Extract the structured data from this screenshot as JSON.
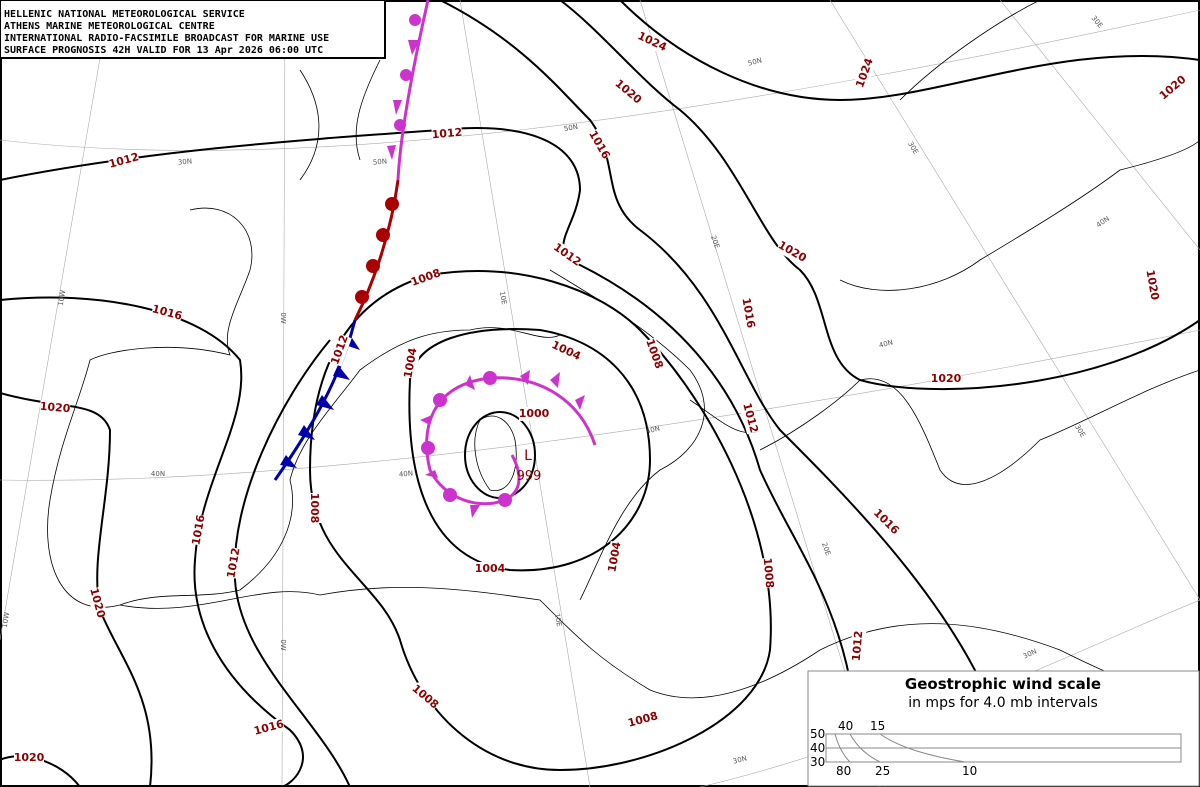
{
  "header": {
    "lines": [
      "HELLENIC NATIONAL METEOROLOGICAL SERVICE",
      "ATHENS MARINE METEOROLOGICAL CENTRE",
      "INTERNATIONAL RADIO-FACSIMILE BROADCAST FOR MARINE USE",
      "SURFACE PROGNOSIS 42H VALID FOR 13 Apr 2026 06:00 UTC"
    ]
  },
  "isobar_labels": [
    "1024",
    "1024",
    "1020",
    "1020",
    "1016",
    "1012",
    "1012",
    "1020",
    "1020",
    "1012",
    "1008",
    "1016",
    "1016",
    "1012",
    "1004",
    "1004",
    "1008",
    "1020",
    "1020",
    "1000",
    "1012",
    "1008",
    "1016",
    "1016",
    "1012",
    "1004",
    "1004",
    "1008",
    "1020",
    "1012",
    "1008",
    "1008",
    "1016",
    "1020"
  ],
  "graticule_labels": [
    "50N",
    "50N",
    "50N",
    "30N",
    "30E",
    "40N",
    "30E",
    "20E",
    "10E",
    "0W",
    "10W",
    "40N",
    "40N",
    "40N",
    "40N",
    "30E",
    "20E",
    "10E",
    "0W",
    "10W",
    "30N",
    "30N"
  ],
  "center": {
    "type": "L",
    "pressure": "999"
  },
  "wind_scale": {
    "title": "Geostrophic wind scale",
    "subtitle": "in mps for 4.0 mb intervals",
    "lat_labels": [
      "50",
      "40",
      "30"
    ],
    "top_labels": [
      "40",
      "15"
    ],
    "bottom_labels": [
      "80",
      "25",
      "10"
    ]
  }
}
